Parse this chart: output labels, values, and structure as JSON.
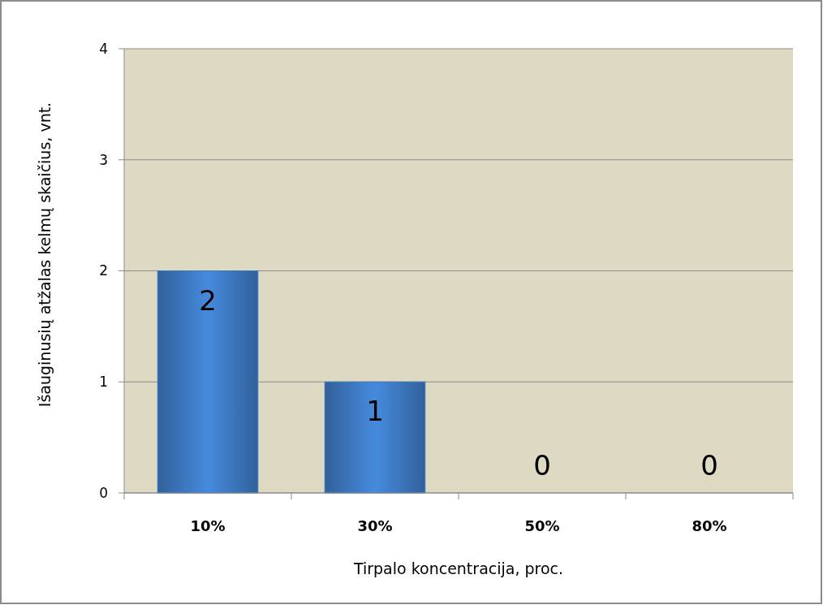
{
  "chart_data": {
    "type": "bar",
    "categories": [
      "10%",
      "30%",
      "50%",
      "80%"
    ],
    "values": [
      2,
      1,
      0,
      0
    ],
    "color": "#3d78c0",
    "xlabel": "Tirpalo koncentracija, proc.",
    "ylabel": "Išauginusių atžalas kelmų skaičius, vnt.",
    "ylim": [
      0,
      4
    ],
    "yticks": [
      0,
      1,
      2,
      3,
      4
    ],
    "grid": "y",
    "data_labels": true
  }
}
